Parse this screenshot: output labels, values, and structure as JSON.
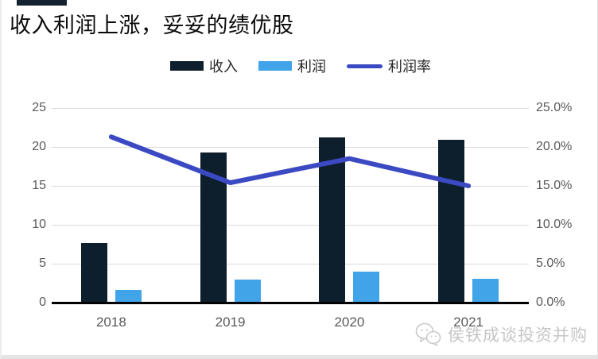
{
  "title": "收入利润上涨，妥妥的绩优股",
  "colors": {
    "revenue_bar": "#0d1e2d",
    "profit_bar": "#41a3e8",
    "margin_line": "#3b49c3",
    "gridline": "#d9d9d9",
    "axis_line": "#000000",
    "tick_text": "#595959",
    "accent_bar": "#15222f"
  },
  "legend": [
    {
      "label": "收入",
      "type": "bar",
      "color": "#0d1e2d"
    },
    {
      "label": "利润",
      "type": "bar",
      "color": "#41a3e8"
    },
    {
      "label": "利润率",
      "type": "line",
      "color": "#3b49c3"
    }
  ],
  "chart_data": {
    "type": "bar+line combo",
    "categories": [
      "2018",
      "2019",
      "2020",
      "2021"
    ],
    "series": [
      {
        "name": "收入",
        "type": "bar",
        "axis": "left",
        "values": [
          7.7,
          19.3,
          21.2,
          20.9
        ]
      },
      {
        "name": "利润",
        "type": "bar",
        "axis": "left",
        "values": [
          1.6,
          3.0,
          4.0,
          3.1
        ]
      },
      {
        "name": "利润率",
        "type": "line",
        "axis": "right",
        "values_percent": [
          21.3,
          15.4,
          18.5,
          15.0
        ]
      }
    ],
    "left_axis": {
      "min": 0,
      "max": 25,
      "step": 5,
      "ticks": [
        "0",
        "5",
        "10",
        "15",
        "20",
        "25"
      ]
    },
    "right_axis": {
      "min": 0,
      "max": 25,
      "step": 5,
      "ticks": [
        "0.0%",
        "5.0%",
        "10.0%",
        "15.0%",
        "20.0%",
        "25.0%"
      ]
    },
    "grid": true,
    "legend_position": "top"
  },
  "watermark": {
    "text": "侯铁成谈投资并购",
    "icon": "wechat-icon"
  }
}
